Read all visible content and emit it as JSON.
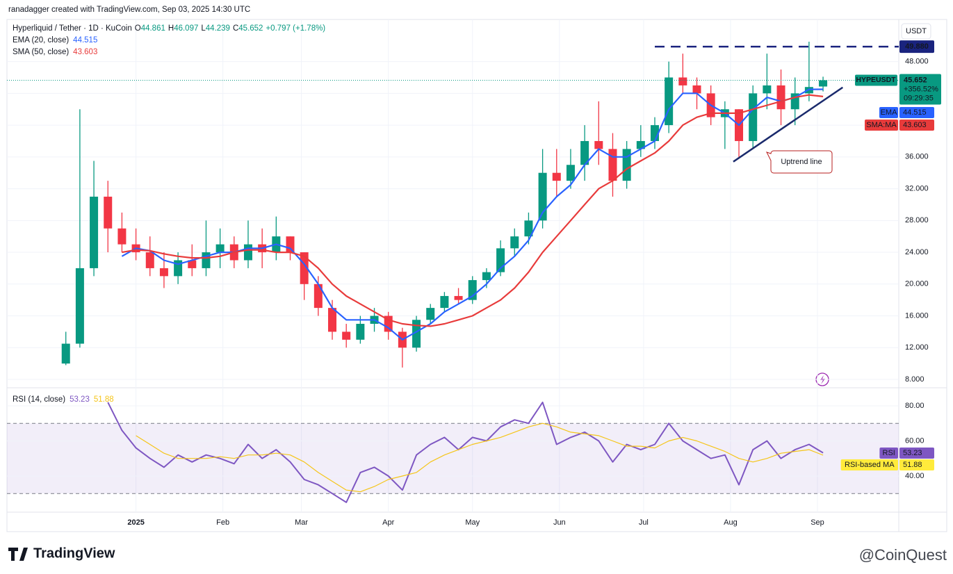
{
  "header": "ranadagger created with TradingView.com, Sep 03, 2025 14:30 UTC",
  "footer": {
    "logo": "TradingView",
    "watermark": "@CoinQuest"
  },
  "chart_data": [
    {
      "type": "candlestick",
      "title": "Hyperliquid / Tether · 1D · KuCoin",
      "ohlc_labels": [
        "O",
        "H",
        "L",
        "C"
      ],
      "change": "+0.797 (+1.78%)",
      "currency": "USDT",
      "symbol": "HYPEUSDT",
      "symbol_change": "+356.52%",
      "countdown": "09:29:35",
      "up_color": "#089981",
      "down_color": "#f23645",
      "x": [
        -25,
        -20,
        -15,
        -10,
        -5,
        0,
        5,
        10,
        15,
        20,
        25,
        30,
        35,
        40,
        45,
        50,
        55,
        60,
        65,
        70,
        75,
        80,
        85,
        90,
        95,
        100,
        105,
        110,
        115,
        120,
        125,
        130,
        135,
        140,
        145,
        150,
        155,
        160,
        165,
        170,
        175,
        180,
        185,
        190,
        195,
        200,
        205,
        210,
        215,
        220,
        225,
        230,
        235,
        240,
        245
      ],
      "candles": [
        [
          10,
          14,
          9.8,
          12.5
        ],
        [
          12.5,
          42,
          12,
          22
        ],
        [
          22,
          35.5,
          21,
          31
        ],
        [
          31,
          33,
          24,
          27
        ],
        [
          27,
          29,
          24,
          25
        ],
        [
          25,
          27,
          23,
          24
        ],
        [
          24,
          26,
          21,
          22
        ],
        [
          22,
          24,
          19.5,
          21
        ],
        [
          21,
          24,
          20,
          23
        ],
        [
          23,
          25,
          21,
          22
        ],
        [
          22,
          28,
          21,
          24
        ],
        [
          24,
          27,
          22,
          25
        ],
        [
          25,
          26,
          22,
          23
        ],
        [
          23,
          28,
          22,
          25
        ],
        [
          25,
          27,
          22,
          24
        ],
        [
          24,
          28.5,
          23,
          26
        ],
        [
          26,
          26,
          23,
          24
        ],
        [
          24,
          24,
          18,
          20
        ],
        [
          20,
          21,
          16,
          17
        ],
        [
          17,
          18,
          13,
          14
        ],
        [
          14,
          15,
          12,
          13
        ],
        [
          13,
          16,
          12.5,
          15
        ],
        [
          15,
          17,
          14,
          16
        ],
        [
          16,
          16.5,
          13,
          14
        ],
        [
          14,
          14.5,
          9.5,
          12
        ],
        [
          12,
          16,
          11.5,
          15.5
        ],
        [
          15.5,
          17.5,
          15,
          17
        ],
        [
          17,
          19,
          16.5,
          18.5
        ],
        [
          18.5,
          19.5,
          17.5,
          18
        ],
        [
          18,
          21,
          17.5,
          20.5
        ],
        [
          20.5,
          22,
          19.5,
          21.5
        ],
        [
          21.5,
          25.5,
          21,
          24.5
        ],
        [
          24.5,
          27,
          23.5,
          26
        ],
        [
          26,
          29,
          25,
          28
        ],
        [
          28,
          37,
          27,
          34
        ],
        [
          34,
          37,
          31,
          33
        ],
        [
          33,
          37,
          32,
          35
        ],
        [
          35,
          40,
          33,
          38
        ],
        [
          38,
          43,
          35,
          37
        ],
        [
          37,
          39,
          31,
          33
        ],
        [
          33,
          38,
          32,
          37
        ],
        [
          37,
          40,
          36,
          38
        ],
        [
          38,
          41,
          37,
          40
        ],
        [
          40,
          48,
          39,
          46
        ],
        [
          46,
          49,
          44,
          45
        ],
        [
          45,
          46,
          42,
          44
        ],
        [
          44,
          45,
          40,
          41
        ],
        [
          41,
          43,
          37,
          42
        ],
        [
          42,
          42,
          36,
          38
        ],
        [
          38,
          45,
          37,
          44
        ],
        [
          44,
          49,
          42,
          45
        ],
        [
          45,
          47,
          40,
          42
        ],
        [
          42,
          46,
          40,
          44
        ],
        [
          44,
          50.5,
          43,
          44.8
        ],
        [
          44.861,
          46.097,
          44.239,
          45.652
        ]
      ],
      "series": [
        {
          "name": "EMA (20, close)",
          "tag": "EMA",
          "color": "#2962ff",
          "values": [
            null,
            null,
            null,
            null,
            23.5,
            24.5,
            24.2,
            23,
            22.5,
            23,
            23.5,
            24,
            24,
            24.5,
            24.5,
            25,
            24.5,
            22.5,
            20,
            17,
            15.5,
            15.5,
            15.5,
            14.5,
            13,
            14,
            15,
            16.5,
            17.5,
            18.5,
            20,
            22,
            23.5,
            25.5,
            29,
            31,
            32.5,
            35,
            37,
            36,
            36,
            37,
            38,
            42,
            44,
            44,
            42.5,
            41.5,
            40,
            42,
            43.5,
            43,
            43.5,
            44.5,
            44.515
          ]
        },
        {
          "name": "SMA (50, close)",
          "tag": "SMA:MA",
          "color": "#e83b3b",
          "values": [
            null,
            null,
            null,
            null,
            24,
            24.3,
            24.2,
            23.8,
            23.5,
            23.3,
            23.3,
            23.5,
            24,
            24.3,
            24.3,
            24,
            24,
            23.5,
            22,
            20,
            18.5,
            17.5,
            16.5,
            15.5,
            15,
            14.8,
            14.7,
            15,
            15.5,
            16,
            17,
            18,
            19.5,
            21.5,
            24,
            26,
            28,
            30,
            32,
            33,
            34.5,
            35.5,
            36.5,
            38,
            40,
            41,
            41.5,
            41.5,
            41.5,
            42,
            42.5,
            43,
            43.5,
            43.8,
            43.603
          ]
        }
      ],
      "levels": [
        {
          "value": 49.88,
          "label": "49.880",
          "color": "#1a237e"
        }
      ],
      "trendlines": [
        {
          "x": [
            213,
            252
          ],
          "values": [
            35.4,
            44.75
          ],
          "color": "#1a2a6c"
        }
      ],
      "annotations": [
        "Uptrend line"
      ],
      "xlim": [
        -46,
        272
      ],
      "ylim": [
        7.04,
        53.3
      ],
      "yticks": [
        {
          "value": 8,
          "label": "8.000"
        },
        {
          "value": 12,
          "label": "12.000"
        },
        {
          "value": 16,
          "label": "16.000"
        },
        {
          "value": 20,
          "label": "20.000"
        },
        {
          "value": 24,
          "label": "24.000"
        },
        {
          "value": 28,
          "label": "28.000"
        },
        {
          "value": 32,
          "label": "32.000"
        },
        {
          "value": 36,
          "label": "36.000"
        },
        {
          "value": 40,
          "label": "40.000"
        },
        {
          "value": 44,
          "label": "44.000"
        },
        {
          "value": 48,
          "label": "48.000"
        }
      ],
      "grid": true
    },
    {
      "type": "line",
      "title": "RSI (14, close)",
      "x": [
        -25,
        -20,
        -15,
        -10,
        -5,
        0,
        5,
        10,
        15,
        20,
        25,
        30,
        35,
        40,
        45,
        50,
        55,
        60,
        65,
        70,
        75,
        80,
        85,
        90,
        95,
        100,
        105,
        110,
        115,
        120,
        125,
        130,
        135,
        140,
        145,
        150,
        155,
        160,
        165,
        170,
        175,
        180,
        185,
        190,
        195,
        200,
        205,
        210,
        215,
        220,
        225,
        230,
        235,
        240,
        245
      ],
      "series": [
        {
          "name": "RSI",
          "color": "#7e57c2",
          "tag_color": "#7e57c2",
          "values": [
            null,
            null,
            null,
            82,
            66,
            56,
            50,
            45,
            52,
            48,
            52,
            50,
            47,
            58,
            50,
            55,
            48,
            38,
            35,
            30,
            25,
            42,
            45,
            40,
            32,
            52,
            58,
            62,
            55,
            62,
            60,
            68,
            72,
            70,
            82,
            58,
            62,
            65,
            60,
            48,
            58,
            55,
            58,
            70,
            60,
            55,
            50,
            52,
            35,
            55,
            60,
            50,
            55,
            58,
            53.23
          ]
        },
        {
          "name": "RSI-based MA",
          "color": "#f5c518",
          "tag_color": "#ffeb3b",
          "values": [
            null,
            null,
            null,
            null,
            null,
            63,
            58,
            53,
            50,
            50,
            50,
            51,
            50,
            52,
            52,
            53,
            52,
            48,
            42,
            37,
            32,
            31,
            34,
            38,
            40,
            42,
            48,
            52,
            55,
            58,
            60,
            62,
            65,
            68,
            70,
            68,
            65,
            64,
            63,
            60,
            57,
            57,
            56,
            60,
            62,
            60,
            57,
            54,
            50,
            48,
            50,
            53,
            54,
            55,
            51.88
          ]
        }
      ],
      "bands": [
        30,
        70
      ],
      "xlim": [
        -46,
        272
      ],
      "ylim": [
        19.4,
        89.5
      ],
      "yticks": [
        {
          "value": 40,
          "label": "40.00"
        },
        {
          "value": 60,
          "label": "60.00"
        },
        {
          "value": 80,
          "label": "80.00"
        }
      ],
      "xticks": [
        {
          "value": 0,
          "label": "2025"
        },
        {
          "value": 31,
          "label": "Feb"
        },
        {
          "value": 59,
          "label": "Mar"
        },
        {
          "value": 90,
          "label": "Apr"
        },
        {
          "value": 120,
          "label": "May"
        },
        {
          "value": 151,
          "label": "Jun"
        },
        {
          "value": 181,
          "label": "Jul"
        },
        {
          "value": 212,
          "label": "Aug"
        },
        {
          "value": 243,
          "label": "Sep"
        }
      ],
      "grid": true
    }
  ]
}
